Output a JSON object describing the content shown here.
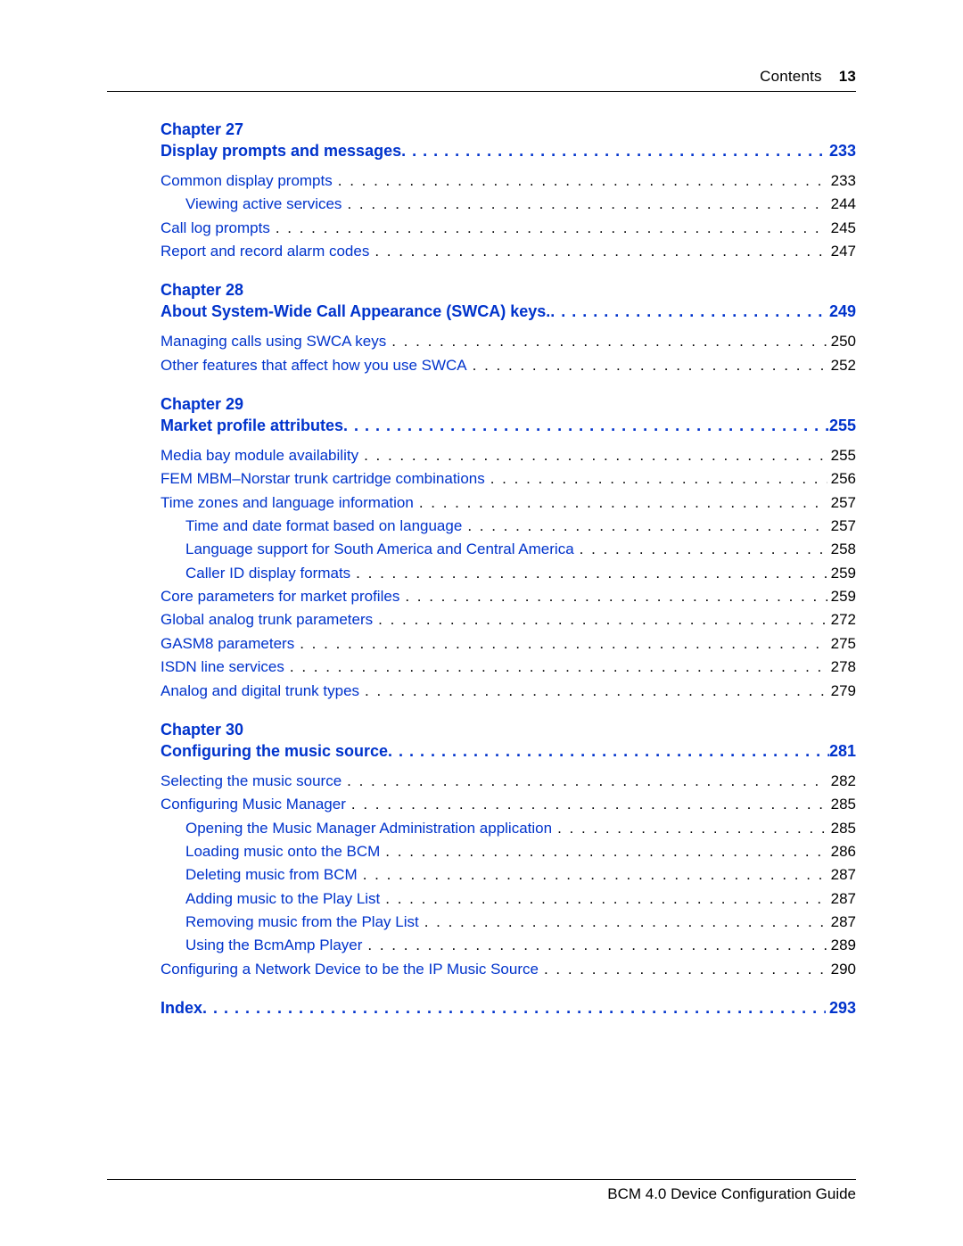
{
  "header": {
    "label": "Contents",
    "page_number": "13"
  },
  "footer": "BCM 4.0 Device Configuration Guide",
  "dots_bold": ". . . . . . . . . . . . . . . . . . . . . . . . . . . . . . . . . . . . . . . . . . . . . . . . . . . . . . . . . . . . . . . . . . . . . . . . . . . . . . . . . . . . . . . . . . . . . . . . . . . .",
  "dots": " . . . . . . . . . . . . . . . . . . . . . . . . . . . . . . . . . . . . . . . . . . . . . . . . . . . . . . . . . . . . . . . . . . . . . . . . . . . . . . . . . . . . . . . . . . . . . . . . . . . . . . . . . . . . . . . . . . . . . . . .",
  "index": {
    "title": "Index",
    "page": "293"
  },
  "chapters": [
    {
      "label": "Chapter 27",
      "title": "Display prompts and messages",
      "page": "233",
      "entries": [
        {
          "t": "Common display prompts",
          "p": "233",
          "indent": 0
        },
        {
          "t": "Viewing active services",
          "p": "244",
          "indent": 1
        },
        {
          "t": "Call log prompts",
          "p": "245",
          "indent": 0
        },
        {
          "t": "Report and record alarm codes",
          "p": "247",
          "indent": 0
        }
      ]
    },
    {
      "label": "Chapter 28",
      "title": "About System-Wide Call Appearance (SWCA) keys",
      "trailing_dot": true,
      "page": "249",
      "entries": [
        {
          "t": "Managing calls using SWCA keys",
          "p": "250",
          "indent": 0
        },
        {
          "t": "Other features that affect how you use SWCA",
          "p": "252",
          "indent": 0
        }
      ]
    },
    {
      "label": "Chapter 29",
      "title": "Market profile attributes",
      "page": "255",
      "entries": [
        {
          "t": "Media bay module availability",
          "p": "255",
          "indent": 0
        },
        {
          "t": "FEM MBM–Norstar trunk cartridge combinations",
          "p": "256",
          "indent": 0
        },
        {
          "t": "Time zones and language information",
          "p": "257",
          "indent": 0
        },
        {
          "t": "Time and date format based on language",
          "p": "257",
          "indent": 1
        },
        {
          "t": "Language support for South America and Central America",
          "p": "258",
          "indent": 1
        },
        {
          "t": "Caller ID display formats",
          "p": "259",
          "indent": 1
        },
        {
          "t": "Core parameters for market profiles",
          "p": "259",
          "indent": 0
        },
        {
          "t": "Global analog trunk parameters",
          "p": "272",
          "indent": 0
        },
        {
          "t": "GASM8 parameters",
          "p": "275",
          "indent": 0
        },
        {
          "t": "ISDN line services",
          "p": "278",
          "indent": 0
        },
        {
          "t": "Analog and digital trunk types",
          "p": "279",
          "indent": 0
        }
      ]
    },
    {
      "label": "Chapter 30",
      "title": "Configuring the music source",
      "page": "281",
      "entries": [
        {
          "t": "Selecting the music source",
          "p": "282",
          "indent": 0
        },
        {
          "t": "Configuring Music Manager",
          "p": "285",
          "indent": 0
        },
        {
          "t": "Opening the Music Manager Administration application",
          "p": "285",
          "indent": 1
        },
        {
          "t": "Loading music onto the BCM",
          "p": "286",
          "indent": 1
        },
        {
          "t": "Deleting music from BCM",
          "p": "287",
          "indent": 1
        },
        {
          "t": "Adding music to the Play List",
          "p": "287",
          "indent": 1
        },
        {
          "t": "Removing music from the Play List",
          "p": "287",
          "indent": 1
        },
        {
          "t": "Using the BcmAmp Player",
          "p": "289",
          "indent": 1
        },
        {
          "t": "Configuring a Network Device to be the IP Music Source",
          "p": "290",
          "indent": 0
        }
      ]
    }
  ]
}
